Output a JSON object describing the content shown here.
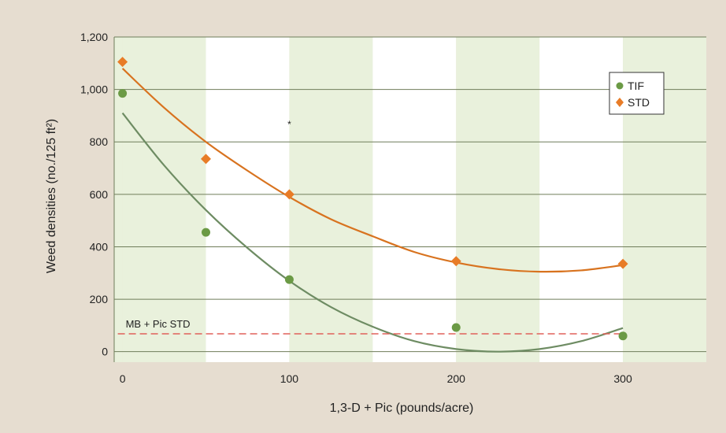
{
  "chart_data": {
    "type": "scatter",
    "title": "",
    "xlabel": "1,3-D + Pic (pounds/acre)",
    "ylabel": "Weed densities (no./125 ft²)",
    "xlim": [
      -5,
      350
    ],
    "ylim": [
      -40,
      1200
    ],
    "x_ticks": [
      0,
      100,
      200,
      300
    ],
    "x_tick_labels": [
      "0",
      "100",
      "200",
      "300"
    ],
    "y_ticks": [
      0,
      200,
      400,
      600,
      800,
      1000,
      1200
    ],
    "y_tick_labels": [
      "0",
      "200",
      "400",
      "600",
      "800",
      "1,000",
      "1,200"
    ],
    "grid": "horizontal",
    "background_bands": {
      "width": 50,
      "colors": [
        "#e9f1dc",
        "#ffffff"
      ]
    },
    "legend_position": "top-right",
    "series": [
      {
        "name": "TIF",
        "marker": "circle",
        "color": "#6b9a45",
        "x": [
          0,
          50,
          100,
          200,
          300
        ],
        "y": [
          985,
          455,
          275,
          92,
          60
        ],
        "fit": {
          "x": [
            0,
            25,
            50,
            75,
            100,
            125,
            150,
            175,
            200,
            225,
            250,
            275,
            300
          ],
          "y": [
            910,
            710,
            540,
            395,
            270,
            170,
            95,
            40,
            10,
            0,
            10,
            40,
            90
          ],
          "color": "#6e8c63"
        }
      },
      {
        "name": "STD",
        "marker": "diamond",
        "color": "#e87c27",
        "x": [
          0,
          50,
          100,
          200,
          300
        ],
        "y": [
          1105,
          735,
          600,
          345,
          335
        ],
        "fit": {
          "x": [
            0,
            25,
            50,
            75,
            100,
            125,
            150,
            175,
            200,
            225,
            250,
            275,
            300
          ],
          "y": [
            1080,
            930,
            800,
            690,
            590,
            505,
            440,
            380,
            340,
            315,
            305,
            310,
            330
          ],
          "color": "#d8731f"
        }
      }
    ],
    "reference_line": {
      "label": "MB + Pic STD",
      "y": 68,
      "color": "#e0605a"
    },
    "annotations": [
      {
        "text": "*",
        "x": 100,
        "y": 855
      }
    ]
  }
}
